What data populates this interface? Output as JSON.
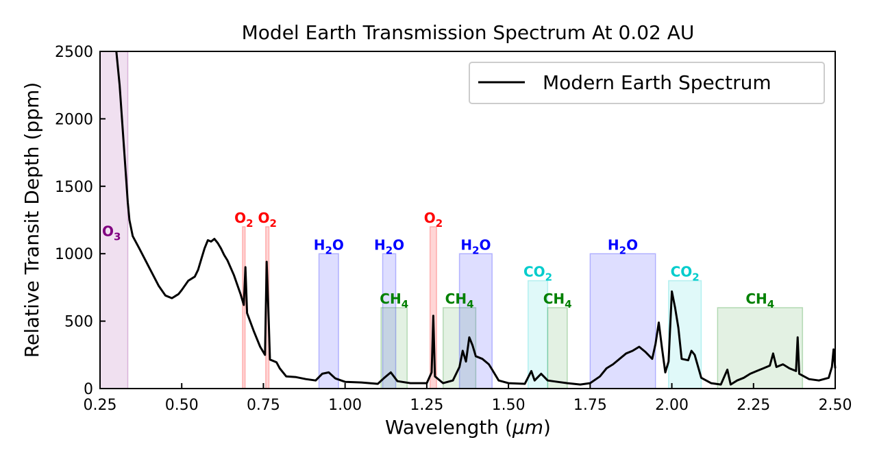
{
  "chart_data": {
    "type": "line",
    "title": "Model Earth Transmission Spectrum At 0.02 AU",
    "xlabel_text": "Wavelength (",
    "xlabel_unit": "μm",
    "xlabel_close": ")",
    "ylabel": "Relative Transit Depth (ppm)",
    "xlim": [
      0.25,
      2.5
    ],
    "ylim": [
      0,
      2500
    ],
    "x_ticks": [
      "0.25",
      "0.50",
      "0.75",
      "1.00",
      "1.25",
      "1.50",
      "1.75",
      "2.00",
      "2.25",
      "2.50"
    ],
    "y_ticks": [
      "0",
      "500",
      "1000",
      "1500",
      "2000",
      "2500"
    ],
    "grid": false,
    "legend": {
      "placement": "top-right",
      "entries": [
        "Modern Earth Spectrum"
      ]
    },
    "series": [
      {
        "name": "Modern Earth Spectrum",
        "color": "#000000",
        "points": [
          [
            0.3,
            2500
          ],
          [
            0.31,
            2250
          ],
          [
            0.32,
            1900
          ],
          [
            0.33,
            1550
          ],
          [
            0.335,
            1380
          ],
          [
            0.34,
            1250
          ],
          [
            0.35,
            1130
          ],
          [
            0.37,
            1040
          ],
          [
            0.4,
            900
          ],
          [
            0.43,
            760
          ],
          [
            0.45,
            690
          ],
          [
            0.47,
            670
          ],
          [
            0.49,
            700
          ],
          [
            0.5,
            730
          ],
          [
            0.52,
            800
          ],
          [
            0.54,
            830
          ],
          [
            0.55,
            880
          ],
          [
            0.56,
            960
          ],
          [
            0.57,
            1040
          ],
          [
            0.58,
            1100
          ],
          [
            0.59,
            1090
          ],
          [
            0.6,
            1110
          ],
          [
            0.61,
            1080
          ],
          [
            0.62,
            1040
          ],
          [
            0.63,
            990
          ],
          [
            0.64,
            950
          ],
          [
            0.66,
            840
          ],
          [
            0.68,
            700
          ],
          [
            0.69,
            620
          ],
          [
            0.695,
            900
          ],
          [
            0.7,
            560
          ],
          [
            0.72,
            430
          ],
          [
            0.74,
            310
          ],
          [
            0.755,
            250
          ],
          [
            0.76,
            940
          ],
          [
            0.765,
            600
          ],
          [
            0.77,
            215
          ],
          [
            0.79,
            195
          ],
          [
            0.8,
            150
          ],
          [
            0.82,
            90
          ],
          [
            0.85,
            85
          ],
          [
            0.88,
            70
          ],
          [
            0.91,
            60
          ],
          [
            0.93,
            110
          ],
          [
            0.95,
            120
          ],
          [
            0.97,
            75
          ],
          [
            1.0,
            50
          ],
          [
            1.05,
            45
          ],
          [
            1.1,
            35
          ],
          [
            1.12,
            80
          ],
          [
            1.14,
            120
          ],
          [
            1.16,
            55
          ],
          [
            1.2,
            40
          ],
          [
            1.25,
            40
          ],
          [
            1.265,
            120
          ],
          [
            1.27,
            540
          ],
          [
            1.275,
            90
          ],
          [
            1.3,
            40
          ],
          [
            1.33,
            60
          ],
          [
            1.35,
            160
          ],
          [
            1.36,
            280
          ],
          [
            1.37,
            200
          ],
          [
            1.38,
            380
          ],
          [
            1.39,
            320
          ],
          [
            1.4,
            240
          ],
          [
            1.42,
            220
          ],
          [
            1.44,
            180
          ],
          [
            1.45,
            140
          ],
          [
            1.47,
            60
          ],
          [
            1.5,
            40
          ],
          [
            1.55,
            35
          ],
          [
            1.57,
            130
          ],
          [
            1.58,
            60
          ],
          [
            1.6,
            110
          ],
          [
            1.62,
            60
          ],
          [
            1.65,
            50
          ],
          [
            1.68,
            40
          ],
          [
            1.72,
            30
          ],
          [
            1.75,
            40
          ],
          [
            1.78,
            90
          ],
          [
            1.8,
            150
          ],
          [
            1.82,
            180
          ],
          [
            1.84,
            220
          ],
          [
            1.86,
            260
          ],
          [
            1.88,
            280
          ],
          [
            1.9,
            310
          ],
          [
            1.92,
            270
          ],
          [
            1.94,
            220
          ],
          [
            1.95,
            330
          ],
          [
            1.96,
            490
          ],
          [
            1.97,
            300
          ],
          [
            1.98,
            120
          ],
          [
            1.99,
            200
          ],
          [
            2.0,
            720
          ],
          [
            2.01,
            600
          ],
          [
            2.02,
            450
          ],
          [
            2.03,
            220
          ],
          [
            2.05,
            210
          ],
          [
            2.06,
            280
          ],
          [
            2.07,
            250
          ],
          [
            2.09,
            80
          ],
          [
            2.12,
            40
          ],
          [
            2.15,
            30
          ],
          [
            2.17,
            140
          ],
          [
            2.18,
            30
          ],
          [
            2.2,
            60
          ],
          [
            2.22,
            80
          ],
          [
            2.24,
            110
          ],
          [
            2.26,
            130
          ],
          [
            2.28,
            150
          ],
          [
            2.3,
            170
          ],
          [
            2.31,
            260
          ],
          [
            2.32,
            160
          ],
          [
            2.34,
            180
          ],
          [
            2.36,
            150
          ],
          [
            2.38,
            130
          ],
          [
            2.385,
            380
          ],
          [
            2.39,
            110
          ],
          [
            2.42,
            70
          ],
          [
            2.45,
            60
          ],
          [
            2.48,
            80
          ],
          [
            2.49,
            160
          ],
          [
            2.495,
            290
          ],
          [
            2.5,
            150
          ]
        ]
      }
    ],
    "bands": [
      {
        "species": "O",
        "sub": "3",
        "color": "#800080",
        "x": [
          0.25,
          0.335
        ],
        "height": 2500,
        "label_y": 1150
      },
      {
        "species": "O",
        "sub": "2",
        "color": "#ff0000",
        "x": [
          0.686,
          0.694
        ],
        "height": 1200,
        "label_y": 1250
      },
      {
        "species": "O",
        "sub": "2",
        "color": "#ff0000",
        "x": [
          0.757,
          0.767
        ],
        "height": 1200,
        "label_y": 1250
      },
      {
        "species": "H",
        "sub": "2",
        "tail": "O",
        "color": "#0000ff",
        "x": [
          0.92,
          0.98
        ],
        "height": 1000,
        "label_y": 1050
      },
      {
        "species": "H",
        "sub": "2",
        "tail": "O",
        "color": "#0000ff",
        "x": [
          1.115,
          1.155
        ],
        "height": 1000,
        "label_y": 1050
      },
      {
        "species": "CH",
        "sub": "4",
        "color": "#008000",
        "x": [
          1.11,
          1.19
        ],
        "height": 600,
        "label_y": 650
      },
      {
        "species": "O",
        "sub": "2",
        "color": "#ff0000",
        "x": [
          1.26,
          1.28
        ],
        "height": 1200,
        "label_y": 1250
      },
      {
        "species": "CH",
        "sub": "4",
        "color": "#008000",
        "x": [
          1.3,
          1.4
        ],
        "height": 600,
        "label_y": 650
      },
      {
        "species": "H",
        "sub": "2",
        "tail": "O",
        "color": "#0000ff",
        "x": [
          1.35,
          1.45
        ],
        "height": 1000,
        "label_y": 1050
      },
      {
        "species": "CO",
        "sub": "2",
        "color": "#00cccc",
        "x": [
          1.56,
          1.62
        ],
        "height": 800,
        "label_y": 850
      },
      {
        "species": "CH",
        "sub": "4",
        "color": "#008000",
        "x": [
          1.62,
          1.68
        ],
        "height": 600,
        "label_y": 650
      },
      {
        "species": "H",
        "sub": "2",
        "tail": "O",
        "color": "#0000ff",
        "x": [
          1.75,
          1.95
        ],
        "height": 1000,
        "label_y": 1050
      },
      {
        "species": "CO",
        "sub": "2",
        "color": "#00cccc",
        "x": [
          1.99,
          2.09
        ],
        "height": 800,
        "label_y": 850
      },
      {
        "species": "CH",
        "sub": "4",
        "color": "#008000",
        "x": [
          2.14,
          2.4
        ],
        "height": 600,
        "label_y": 650
      }
    ]
  }
}
